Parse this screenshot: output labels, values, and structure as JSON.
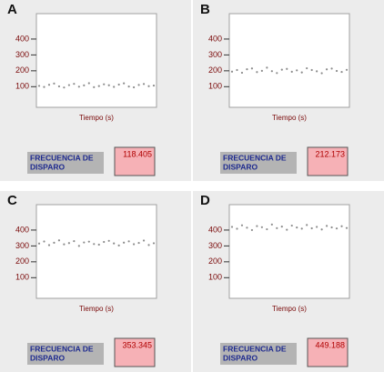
{
  "panels": [
    {
      "letter": "A",
      "chart": {
        "type": "line",
        "ylim": [
          -30,
          560
        ],
        "yticks": [
          100,
          200,
          300,
          400
        ],
        "x_label": "Tiempo (s)",
        "color": "#8c8c8c",
        "values": [
          105,
          98,
          112,
          120,
          102,
          95,
          110,
          118,
          100,
          108,
          122,
          97,
          104,
          115,
          109,
          99,
          113,
          121,
          101,
          96,
          111,
          117,
          103,
          107
        ]
      },
      "indicator": {
        "label": [
          "FRECUENCIA DE",
          "DISPARO"
        ],
        "value": 118.405
      }
    },
    {
      "letter": "B",
      "chart": {
        "type": "line",
        "ylim": [
          -30,
          560
        ],
        "yticks": [
          100,
          200,
          300,
          400
        ],
        "x_label": "Tiempo (s)",
        "color": "#8c8c8c",
        "values": [
          195,
          205,
          188,
          210,
          215,
          192,
          200,
          220,
          198,
          186,
          207,
          212,
          194,
          203,
          190,
          216,
          205,
          197,
          185,
          209,
          214,
          199,
          193,
          206
        ]
      },
      "indicator": {
        "label": [
          "FRECUENCIA DE",
          "DISPARO"
        ],
        "value": 212.173
      }
    },
    {
      "letter": "C",
      "chart": {
        "type": "line",
        "ylim": [
          -30,
          560
        ],
        "yticks": [
          100,
          200,
          300,
          400
        ],
        "x_label": "Tiempo (s)",
        "color": "#8c8c8c",
        "values": [
          315,
          328,
          305,
          320,
          335,
          310,
          318,
          330,
          300,
          322,
          327,
          312,
          308,
          325,
          332,
          316,
          303,
          321,
          329,
          311,
          319,
          334,
          306,
          317
        ]
      },
      "indicator": {
        "label": [
          "FRECUENCIA DE",
          "DISPARO"
        ],
        "value": 353.345
      }
    },
    {
      "letter": "D",
      "chart": {
        "type": "line",
        "ylim": [
          -30,
          560
        ],
        "yticks": [
          100,
          200,
          300,
          400
        ],
        "x_label": "Tiempo (s)",
        "color": "#8c8c8c",
        "values": [
          420,
          408,
          430,
          415,
          400,
          425,
          418,
          405,
          435,
          412,
          422,
          402,
          428,
          416,
          409,
          432,
          411,
          420,
          404,
          426,
          417,
          410,
          424,
          413
        ]
      },
      "indicator": {
        "label": [
          "FRECUENCIA DE",
          "DISPARO"
        ],
        "value": 449.188
      }
    }
  ]
}
